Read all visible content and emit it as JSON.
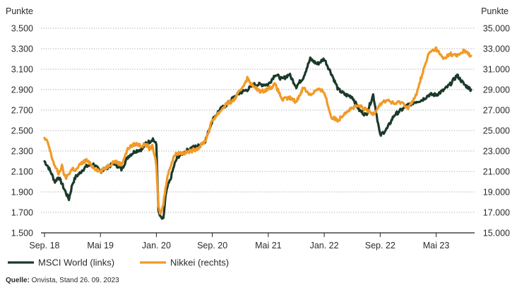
{
  "chart_data": {
    "type": "line",
    "left_axis_unit": "Punkte",
    "right_axis_unit": "Punkte",
    "left_ylim": [
      1500,
      3500
    ],
    "right_ylim": [
      15000,
      35000
    ],
    "left_ticks": [
      "3.500",
      "3.300",
      "3.100",
      "2.900",
      "2.700",
      "2.500",
      "2.300",
      "2.100",
      "1.900",
      "1.700",
      "1.500"
    ],
    "right_ticks": [
      "35.000",
      "33.000",
      "31.000",
      "29.000",
      "27.000",
      "25.000",
      "23.000",
      "21.000",
      "19.000",
      "17.000",
      "15.000"
    ],
    "x_ticks": [
      {
        "label": "Sep. 18",
        "t": 0
      },
      {
        "label": "Mai 19",
        "t": 8
      },
      {
        "label": "Jan. 20",
        "t": 16
      },
      {
        "label": "Sep. 20",
        "t": 24
      },
      {
        "label": "Mai 21",
        "t": 32
      },
      {
        "label": "Jan. 22",
        "t": 40
      },
      {
        "label": "Sep. 22",
        "t": 48
      },
      {
        "label": "Mai 23",
        "t": 56
      }
    ],
    "x_range_months": [
      -0.5,
      61.5
    ],
    "series": [
      {
        "name": "MSCI World (links)",
        "axis": "left",
        "color": "#1c3a2a",
        "months": [
          0,
          0.5,
          1,
          1.5,
          2,
          2.5,
          3,
          3.5,
          4,
          4.5,
          5,
          5.5,
          6,
          7,
          8,
          9,
          10,
          11,
          12,
          13,
          14,
          14.5,
          15,
          15.5,
          16,
          16.3,
          16.6,
          17,
          17.3,
          17.6,
          18,
          18.5,
          19,
          20,
          21,
          22,
          23,
          24,
          25,
          26,
          27,
          28,
          29,
          30,
          31,
          32,
          33,
          34,
          35,
          36,
          37,
          38,
          39,
          40,
          41,
          42,
          43,
          44,
          45,
          46,
          47,
          48,
          49,
          50,
          51,
          52,
          53,
          54,
          55,
          56,
          57,
          58,
          59,
          60,
          61
        ],
        "values": [
          2200,
          2150,
          2080,
          2000,
          2050,
          1980,
          1900,
          1830,
          1980,
          2050,
          2080,
          2120,
          2150,
          2170,
          2100,
          2140,
          2180,
          2120,
          2250,
          2300,
          2320,
          2380,
          2390,
          2420,
          2360,
          1700,
          1650,
          1630,
          1850,
          1950,
          2020,
          2150,
          2240,
          2290,
          2330,
          2350,
          2400,
          2600,
          2700,
          2750,
          2820,
          2870,
          2900,
          2950,
          2950,
          2950,
          3050,
          3000,
          3050,
          2930,
          3020,
          3200,
          3150,
          3200,
          3060,
          2900,
          2850,
          2830,
          2700,
          2650,
          2850,
          2450,
          2520,
          2650,
          2700,
          2750,
          2780,
          2800,
          2850,
          2850,
          2890,
          2950,
          3040,
          2950,
          2900
        ]
      },
      {
        "name": "Nikkei (rechts)",
        "axis": "right",
        "color": "#f29a26",
        "months": [
          0,
          0.5,
          1,
          1.5,
          2,
          2.5,
          3,
          3.5,
          4,
          4.5,
          5,
          5.5,
          6,
          7,
          8,
          9,
          10,
          11,
          12,
          13,
          14,
          14.5,
          15,
          15.5,
          16,
          16.3,
          16.6,
          17,
          17.3,
          17.6,
          18,
          18.5,
          19,
          20,
          21,
          22,
          23,
          24,
          25,
          26,
          27,
          28,
          29,
          30,
          31,
          32,
          33,
          34,
          35,
          36,
          37,
          38,
          39,
          40,
          41,
          42,
          43,
          44,
          45,
          46,
          47,
          48,
          49,
          50,
          51,
          52,
          53,
          54,
          55,
          56,
          57,
          58,
          59,
          60,
          61
        ],
        "values": [
          24200,
          23800,
          22500,
          21500,
          20800,
          21500,
          20300,
          20800,
          21300,
          21100,
          21600,
          21900,
          22100,
          21400,
          21000,
          21500,
          22000,
          21700,
          23300,
          23700,
          23500,
          23700,
          23200,
          23500,
          21500,
          17500,
          16800,
          17800,
          19500,
          20500,
          21500,
          22500,
          22800,
          22800,
          23000,
          23300,
          24000,
          26000,
          26800,
          27600,
          27900,
          28900,
          30100,
          29200,
          28800,
          29100,
          29500,
          28000,
          28200,
          27800,
          29200,
          28500,
          29000,
          28800,
          26300,
          26000,
          26800,
          27200,
          27400,
          27000,
          26600,
          27600,
          28000,
          27600,
          27800,
          27200,
          28200,
          30500,
          32600,
          33000,
          32000,
          32500,
          32300,
          32800,
          32300
        ]
      }
    ],
    "source_label": "Quelle:",
    "source_text": " Onvista, Stand 26. 09. 2023"
  },
  "style": {
    "grid_color": "#7e8a84",
    "axis_color": "#222222"
  }
}
